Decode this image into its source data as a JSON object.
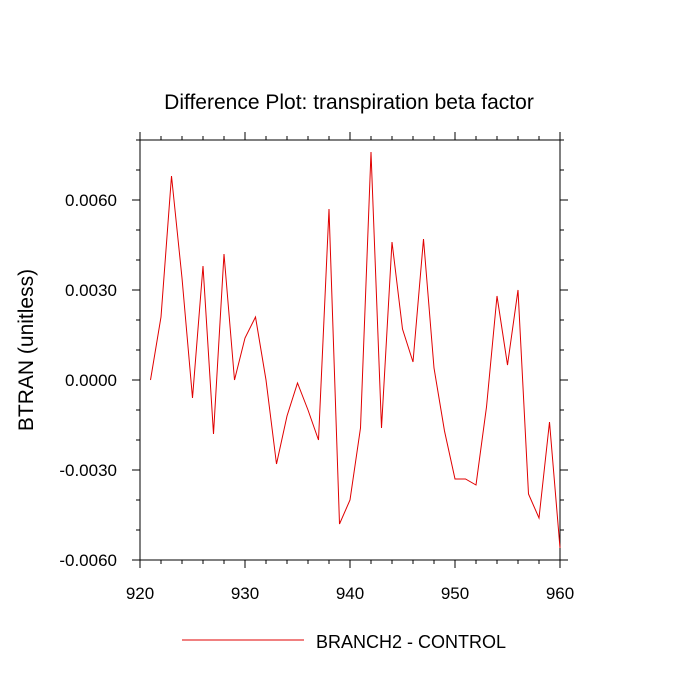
{
  "chart_data": {
    "type": "line",
    "title": "Difference Plot: transpiration beta factor",
    "xlabel": "",
    "ylabel": "BTRAN  (unitless)",
    "xlim": [
      920,
      960
    ],
    "ylim": [
      -0.006,
      0.008
    ],
    "x_ticks": [
      920,
      930,
      940,
      950,
      960
    ],
    "x_tick_labels": [
      "920",
      "930",
      "940",
      "950",
      "960"
    ],
    "y_ticks": [
      -0.006,
      -0.003,
      0.0,
      0.003,
      0.006
    ],
    "y_tick_labels": [
      "-0.0060",
      "-0.0030",
      "0.0000",
      "0.0030",
      "0.0060"
    ],
    "grid": false,
    "legend_position": "bottom-center",
    "series": [
      {
        "name": "BRANCH2 - CONTROL",
        "color": "#e00000",
        "x": [
          921,
          922,
          923,
          924,
          925,
          926,
          927,
          928,
          929,
          930,
          931,
          932,
          933,
          934,
          935,
          936,
          937,
          938,
          939,
          940,
          941,
          942,
          943,
          944,
          945,
          946,
          947,
          948,
          949,
          950,
          951,
          952,
          953,
          954,
          955,
          956,
          957,
          958,
          959,
          960
        ],
        "y": [
          0.0,
          0.0021,
          0.0068,
          0.0034,
          -0.0006,
          0.0038,
          -0.0018,
          0.0042,
          0.0,
          0.0014,
          0.0021,
          0.0,
          -0.0028,
          -0.0012,
          -0.0001,
          -0.001,
          -0.002,
          0.0057,
          -0.0048,
          -0.004,
          -0.0016,
          0.0076,
          -0.0016,
          0.0046,
          0.0017,
          0.0006,
          0.0047,
          0.0004,
          -0.0017,
          -0.0033,
          -0.0033,
          -0.0035,
          -0.0009,
          0.0028,
          0.0005,
          0.003,
          -0.0038,
          -0.0046,
          -0.0014,
          -0.0056
        ]
      }
    ]
  }
}
